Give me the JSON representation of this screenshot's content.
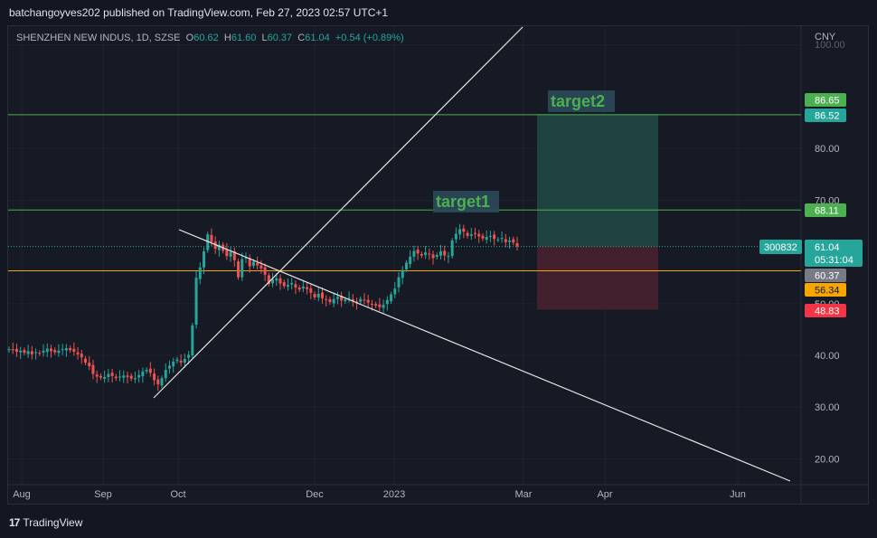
{
  "header": {
    "publisher_line": "batchangoyves202 published on TradingView.com, Feb 27, 2023 02:57 UTC+1"
  },
  "legend": {
    "symbol": "SHENZHEN NEW INDUS, 1D, SZSE",
    "open_label": "O",
    "open": "60.62",
    "high_label": "H",
    "high": "61.60",
    "low_label": "L",
    "low": "60.37",
    "close_label": "C",
    "close": "61.04",
    "change": "+0.54 (+0.89%)"
  },
  "currency": "CNY",
  "footer": {
    "brand": "TradingView",
    "brand_mark": "17"
  },
  "colors": {
    "up": "#26a69a",
    "down": "#ef5350",
    "target_line": "#4caf50",
    "stop_line": "#f7a600",
    "profit_zone": "#1f4a44",
    "loss_zone": "#4a2230"
  },
  "chart_data": {
    "type": "candlestick",
    "y_axis": {
      "min": 15,
      "max": 100,
      "ticks": [
        "20.00",
        "30.00",
        "40.00",
        "50.00",
        "70.00",
        "80.00",
        "100.00"
      ],
      "position": "right",
      "scale": "linear"
    },
    "x_axis": {
      "labels": [
        "Aug",
        "Sep",
        "Oct",
        "Dec",
        "2023",
        "Mar",
        "Apr",
        "Jun"
      ]
    },
    "annotations": [
      {
        "label": "target1",
        "price": 68.11
      },
      {
        "label": "target2",
        "price": 86.52
      }
    ],
    "horizontal_levels": [
      {
        "price": 86.52,
        "label": "86.52",
        "color": "#26a69a"
      },
      {
        "price": 86.65,
        "label": "86.65",
        "color": "#4caf50"
      },
      {
        "price": 68.11,
        "label": "68.11",
        "color": "#4caf50"
      },
      {
        "price": 60.37,
        "label": "60.37",
        "color": "#787b86"
      },
      {
        "price": 56.34,
        "label": "56.34",
        "color": "#f7a600"
      },
      {
        "price": 48.83,
        "label": "48.83",
        "color": "#f23645"
      }
    ],
    "last_price": {
      "price": 61.04,
      "label": "61.04",
      "countdown": "05:31:04",
      "symbol_tag": "300832"
    },
    "position_tool": {
      "entry": 61.04,
      "target": 86.65,
      "stop": 48.83
    },
    "candles_close": [
      41.2,
      41.0,
      40.7,
      40.9,
      40.5,
      40.8,
      40.2,
      40.6,
      40.4,
      40.9,
      41.3,
      40.8,
      40.6,
      40.9,
      41.2,
      41.4,
      41.0,
      40.7,
      40.2,
      39.6,
      38.6,
      37.9,
      36.4,
      35.9,
      35.7,
      35.8,
      36.4,
      36.0,
      35.6,
      35.9,
      36.1,
      35.8,
      35.5,
      35.6,
      36.2,
      36.9,
      37.2,
      36.6,
      35.2,
      34.4,
      35.6,
      37.2,
      38.0,
      38.8,
      39.2,
      38.6,
      39.3,
      40.1,
      45.8,
      55.0,
      57.0,
      60.1,
      63.4,
      61.9,
      60.6,
      61.4,
      60.2,
      59.2,
      60.0,
      58.4,
      55.1,
      58.6,
      58.9,
      57.2,
      58.1,
      57.4,
      56.8,
      55.6,
      53.8,
      54.7,
      54.9,
      53.9,
      53.4,
      53.6,
      54.0,
      53.1,
      52.7,
      53.3,
      52.8,
      52.1,
      51.2,
      51.9,
      51.0,
      50.7,
      50.3,
      50.9,
      51.3,
      50.6,
      50.8,
      51.1,
      50.4,
      50.1,
      50.9,
      50.6,
      50.2,
      49.9,
      49.6,
      49.3,
      49.8,
      50.7,
      51.8,
      52.9,
      55.1,
      56.5,
      57.9,
      59.1,
      60.2,
      59.7,
      59.3,
      59.9,
      59.5,
      58.8,
      59.4,
      60.1,
      59.3,
      59.2,
      62.2,
      63.5,
      64.4,
      63.9,
      63.1,
      63.4,
      63.6,
      63.0,
      62.6,
      62.9,
      63.1,
      62.5,
      62.4,
      62.7,
      61.9,
      62.2,
      61.8,
      61.04
    ]
  }
}
